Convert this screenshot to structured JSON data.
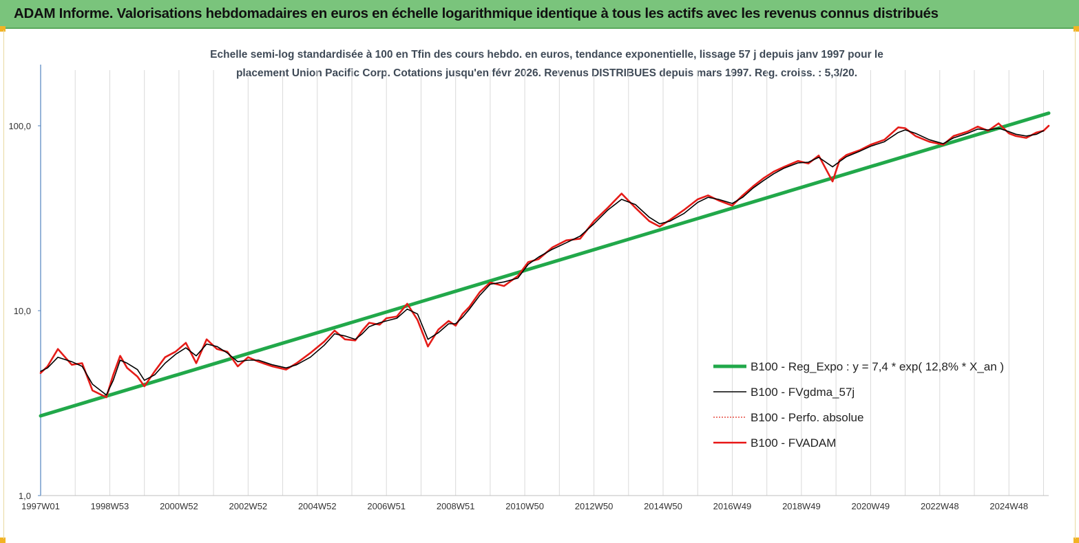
{
  "header": {
    "title": "ADAM Informe. Valorisations hebdomadaires en euros en échelle logarithmique identique à tous les actifs avec les revenus connus distribués"
  },
  "colors": {
    "banner": "#7ac47c",
    "trend": "#21a84a",
    "smooth": "#000000",
    "perf": "#e0261b",
    "fvadam": "#e81414"
  },
  "chart_data": {
    "type": "line",
    "title_lines": [
      "Echelle semi-log standardisée à 100 en Tfin des cours hebdo. en euros, tendance exponentielle, lissage 57 j depuis janv 1997 pour le",
      "placement Union Pacific Corp. Cotations jusqu'en févr 2026.  Revenus DISTRIBUES depuis mars 1997. Reg. croiss. : 5,3/20."
    ],
    "y_scale": "log",
    "ylim": [
      1,
      200
    ],
    "xlim": [
      1997.0,
      2026.15
    ],
    "grid": "vertical",
    "legend_position": "bottom-right",
    "y_ticks": [
      {
        "value": 1,
        "label": "1,0"
      },
      {
        "value": 10,
        "label": "10,0"
      },
      {
        "value": 100,
        "label": "100,0"
      }
    ],
    "x_ticks": [
      {
        "value": 1997.0,
        "label": "1997W01"
      },
      {
        "value": 1999.0,
        "label": "1998W53"
      },
      {
        "value": 2001.0,
        "label": "2000W52"
      },
      {
        "value": 2003.0,
        "label": "2002W52"
      },
      {
        "value": 2005.0,
        "label": "2004W52"
      },
      {
        "value": 2007.0,
        "label": "2006W51"
      },
      {
        "value": 2009.0,
        "label": "2008W51"
      },
      {
        "value": 2011.0,
        "label": "2010W50"
      },
      {
        "value": 2013.0,
        "label": "2012W50"
      },
      {
        "value": 2015.0,
        "label": "2014W50"
      },
      {
        "value": 2017.0,
        "label": "2016W49"
      },
      {
        "value": 2019.0,
        "label": "2018W49"
      },
      {
        "value": 2021.0,
        "label": "2020W49"
      },
      {
        "value": 2023.0,
        "label": "2022W48"
      },
      {
        "value": 2025.0,
        "label": "2024W48"
      }
    ],
    "x_gridlines": [
      1997,
      1998,
      1999,
      2000,
      2001,
      2002,
      2003,
      2004,
      2005,
      2006,
      2007,
      2008,
      2009,
      2010,
      2011,
      2012,
      2013,
      2014,
      2015,
      2016,
      2017,
      2018,
      2019,
      2020,
      2021,
      2022,
      2023,
      2024,
      2025,
      2026
    ],
    "series": [
      {
        "name": "B100 - Reg_Expo : y = 7,4 * exp( 12,8% *  X_an )",
        "style": "trend",
        "x": [
          1997.0,
          2026.15
        ],
        "values": [
          2.7,
          117
        ]
      },
      {
        "name": "B100 - FVgdma_57j",
        "style": "smooth",
        "x": [
          1997.0,
          1997.2,
          1997.5,
          1997.9,
          1998.2,
          1998.5,
          1998.9,
          1999.1,
          1999.3,
          1999.5,
          1999.8,
          2000.0,
          2000.3,
          2000.6,
          2000.9,
          2001.2,
          2001.5,
          2001.8,
          2002.1,
          2002.4,
          2002.7,
          2003.0,
          2003.3,
          2003.7,
          2004.1,
          2004.4,
          2004.8,
          2005.2,
          2005.5,
          2005.8,
          2006.1,
          2006.3,
          2006.5,
          2006.8,
          2007.0,
          2007.3,
          2007.6,
          2007.9,
          2008.2,
          2008.5,
          2008.8,
          2009.0,
          2009.2,
          2009.4,
          2009.7,
          2010.0,
          2010.4,
          2010.8,
          2011.1,
          2011.4,
          2011.8,
          2012.2,
          2012.6,
          2013.0,
          2013.4,
          2013.8,
          2014.2,
          2014.6,
          2014.9,
          2015.2,
          2015.6,
          2016.0,
          2016.3,
          2016.6,
          2017.0,
          2017.3,
          2017.6,
          2017.9,
          2018.2,
          2018.5,
          2018.9,
          2019.2,
          2019.5,
          2019.9,
          2020.1,
          2020.3,
          2020.7,
          2021.0,
          2021.4,
          2021.8,
          2022.0,
          2022.3,
          2022.7,
          2023.1,
          2023.4,
          2023.8,
          2024.1,
          2024.4,
          2024.7,
          2025.0,
          2025.2,
          2025.5,
          2025.8,
          2026.0
        ],
        "values": [
          4.7,
          4.9,
          5.6,
          5.3,
          5.0,
          4.0,
          3.5,
          4.2,
          5.4,
          5.2,
          4.8,
          4.2,
          4.5,
          5.2,
          5.8,
          6.3,
          5.7,
          6.6,
          6.4,
          5.9,
          5.3,
          5.4,
          5.4,
          5.1,
          4.9,
          5.1,
          5.6,
          6.5,
          7.5,
          7.3,
          7.0,
          7.5,
          8.2,
          8.6,
          8.8,
          9.1,
          10.2,
          9.6,
          7.0,
          7.6,
          8.5,
          8.5,
          9.2,
          10.2,
          12.1,
          13.9,
          14.3,
          15.0,
          17.8,
          19.5,
          21.5,
          23.3,
          25.3,
          29.5,
          35.0,
          40.0,
          37.5,
          32.0,
          29.5,
          30.5,
          33.5,
          38.5,
          41.0,
          40.0,
          38.0,
          41.0,
          46.0,
          50.5,
          55.0,
          59.0,
          63.0,
          63.5,
          67.5,
          60.0,
          64.0,
          68.0,
          73.0,
          77.5,
          82.0,
          92.0,
          95.0,
          91.0,
          84.0,
          80.0,
          86.0,
          91.0,
          96.0,
          95.0,
          97.0,
          93.0,
          90.0,
          88.0,
          90.0,
          94.0
        ]
      },
      {
        "name": "B100 - Perfo. absolue",
        "style": "dotted",
        "x": [
          1997.0,
          1997.2,
          1997.5,
          1997.9,
          1998.2,
          1998.5,
          1998.9,
          1999.1,
          1999.3,
          1999.5,
          1999.8,
          2000.0,
          2000.3,
          2000.6,
          2000.9,
          2001.2,
          2001.5,
          2001.8,
          2002.1,
          2002.4,
          2002.7,
          2003.0,
          2003.3,
          2003.7,
          2004.1,
          2004.4,
          2004.8,
          2005.2,
          2005.5,
          2005.8,
          2006.1,
          2006.3,
          2006.5,
          2006.8,
          2007.0,
          2007.3,
          2007.6,
          2007.9,
          2008.2,
          2008.5,
          2008.8,
          2009.0,
          2009.2,
          2009.4,
          2009.7,
          2010.0,
          2010.4,
          2010.8,
          2011.1,
          2011.4,
          2011.8,
          2012.2,
          2012.6,
          2013.0,
          2013.4,
          2013.8,
          2014.2,
          2014.6,
          2014.9,
          2015.2,
          2015.6,
          2016.0,
          2016.3,
          2016.6,
          2017.0,
          2017.3,
          2017.6,
          2017.9,
          2018.2,
          2018.5,
          2018.9,
          2019.2,
          2019.5,
          2019.9,
          2020.1,
          2020.3,
          2020.7,
          2021.0,
          2021.4,
          2021.8,
          2022.0,
          2022.3,
          2022.7,
          2023.1,
          2023.4,
          2023.8,
          2024.1,
          2024.4,
          2024.7,
          2025.0,
          2025.2,
          2025.5,
          2025.8,
          2026.0,
          2026.15
        ],
        "values": [
          4.6,
          5.0,
          6.2,
          5.1,
          5.2,
          3.7,
          3.4,
          4.5,
          5.7,
          4.9,
          4.4,
          3.9,
          4.7,
          5.6,
          6.0,
          6.7,
          5.2,
          7.0,
          6.2,
          6.0,
          5.0,
          5.6,
          5.3,
          5.0,
          4.8,
          5.2,
          5.9,
          6.8,
          7.8,
          7.0,
          6.9,
          7.8,
          8.6,
          8.4,
          9.1,
          9.3,
          10.9,
          8.9,
          6.4,
          7.9,
          8.8,
          8.3,
          9.6,
          10.5,
          12.6,
          14.2,
          13.6,
          15.4,
          18.3,
          19.0,
          22.0,
          24.0,
          24.5,
          30.5,
          36.0,
          43.0,
          36.0,
          30.5,
          28.5,
          31.0,
          35.0,
          40.0,
          42.0,
          39.5,
          37.0,
          42.0,
          47.0,
          52.0,
          56.5,
          60.0,
          64.5,
          62.5,
          69.0,
          50.0,
          65.0,
          69.5,
          74.0,
          79.0,
          84.0,
          98.0,
          97.0,
          88.0,
          82.0,
          79.0,
          88.0,
          93.0,
          99.0,
          94.0,
          103.0,
          91.0,
          88.0,
          86.0,
          92.0,
          94.0,
          100.0
        ]
      },
      {
        "name": "B100 - FVADAM",
        "style": "thick",
        "x": [
          1997.0,
          1997.2,
          1997.5,
          1997.9,
          1998.2,
          1998.5,
          1998.9,
          1999.1,
          1999.3,
          1999.5,
          1999.8,
          2000.0,
          2000.3,
          2000.6,
          2000.9,
          2001.2,
          2001.5,
          2001.8,
          2002.1,
          2002.4,
          2002.7,
          2003.0,
          2003.3,
          2003.7,
          2004.1,
          2004.4,
          2004.8,
          2005.2,
          2005.5,
          2005.8,
          2006.1,
          2006.3,
          2006.5,
          2006.8,
          2007.0,
          2007.3,
          2007.6,
          2007.9,
          2008.2,
          2008.5,
          2008.8,
          2009.0,
          2009.2,
          2009.4,
          2009.7,
          2010.0,
          2010.4,
          2010.8,
          2011.1,
          2011.4,
          2011.8,
          2012.2,
          2012.6,
          2013.0,
          2013.4,
          2013.8,
          2014.2,
          2014.6,
          2014.9,
          2015.2,
          2015.6,
          2016.0,
          2016.3,
          2016.6,
          2017.0,
          2017.3,
          2017.6,
          2017.9,
          2018.2,
          2018.5,
          2018.9,
          2019.2,
          2019.5,
          2019.9,
          2020.1,
          2020.3,
          2020.7,
          2021.0,
          2021.4,
          2021.8,
          2022.0,
          2022.3,
          2022.7,
          2023.1,
          2023.4,
          2023.8,
          2024.1,
          2024.4,
          2024.7,
          2025.0,
          2025.2,
          2025.5,
          2025.8,
          2026.0,
          2026.15
        ],
        "values": [
          4.6,
          5.0,
          6.2,
          5.1,
          5.2,
          3.7,
          3.4,
          4.5,
          5.7,
          4.9,
          4.4,
          3.9,
          4.7,
          5.6,
          6.0,
          6.7,
          5.2,
          7.0,
          6.2,
          6.0,
          5.0,
          5.6,
          5.3,
          5.0,
          4.8,
          5.2,
          5.9,
          6.8,
          7.8,
          7.0,
          6.9,
          7.8,
          8.6,
          8.4,
          9.1,
          9.3,
          10.9,
          8.9,
          6.4,
          7.9,
          8.8,
          8.3,
          9.6,
          10.5,
          12.6,
          14.2,
          13.6,
          15.4,
          18.3,
          19.0,
          22.0,
          24.0,
          24.5,
          30.5,
          36.0,
          43.0,
          36.0,
          30.5,
          28.5,
          31.0,
          35.0,
          40.0,
          42.0,
          39.5,
          37.0,
          42.0,
          47.0,
          52.0,
          56.5,
          60.0,
          64.5,
          62.5,
          69.0,
          50.0,
          65.0,
          69.5,
          74.0,
          79.0,
          84.0,
          98.0,
          97.0,
          88.0,
          82.0,
          79.0,
          88.0,
          93.0,
          99.0,
          94.0,
          103.0,
          91.0,
          88.0,
          86.0,
          92.0,
          94.0,
          100.0
        ]
      }
    ]
  }
}
